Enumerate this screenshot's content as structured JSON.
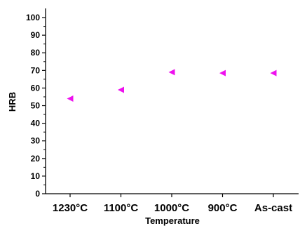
{
  "chart_data": {
    "type": "scatter",
    "title": "",
    "xlabel": "Temperature",
    "ylabel": "HRB",
    "categories": [
      "1230°C",
      "1100°C",
      "1000°C",
      "900°C",
      "As-cast"
    ],
    "series": [
      {
        "values": [
          54,
          59,
          69,
          68.5,
          68.5
        ]
      }
    ],
    "ylim": [
      0,
      105
    ],
    "yticks": [
      0,
      10,
      20,
      30,
      40,
      50,
      60,
      70,
      80,
      90,
      100
    ],
    "grid": false,
    "marker": "left-pointing triangle",
    "marker_color": "#ee11ee"
  }
}
